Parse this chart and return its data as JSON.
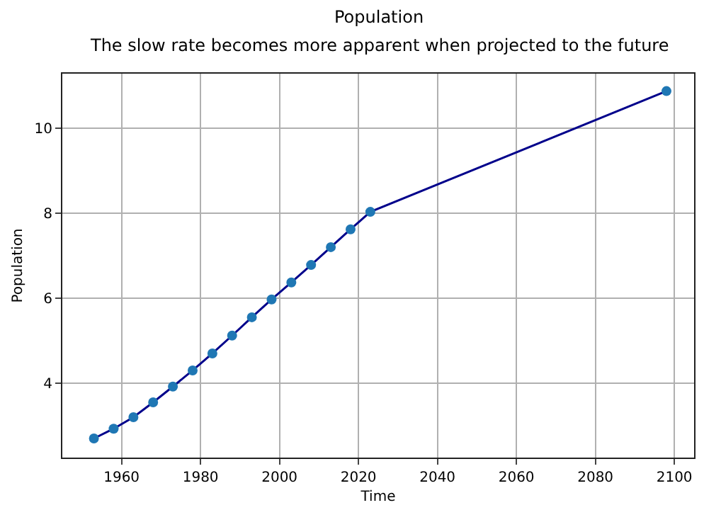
{
  "chart_data": {
    "type": "line",
    "title": "Population",
    "subtitle": "The slow rate becomes more apparent when projected to the future",
    "xlabel": "Time",
    "ylabel": "Population",
    "x": [
      1953,
      1958,
      1963,
      1968,
      1973,
      1978,
      1983,
      1988,
      1993,
      1998,
      2003,
      2008,
      2013,
      2018,
      2023,
      2098
    ],
    "series": [
      {
        "color": "#00008b",
        "colors": [
          "#1f77b4",
          "#1f77b4",
          "#1f77b4",
          "#1f77b4",
          "#1f77b4",
          "#1f77b4",
          "#1f77b4",
          "#1f77b4",
          "#1f77b4",
          "#1f77b4",
          "#1f77b4",
          "#1f77b4",
          "#1f77b4",
          "#1f77b4",
          "#1f77b4",
          "#1f77b4"
        ],
        "values": [
          2.7,
          2.93,
          3.2,
          3.55,
          3.92,
          4.3,
          4.7,
          5.12,
          5.55,
          5.97,
          6.37,
          6.78,
          7.2,
          7.62,
          8.03,
          10.87
        ]
      }
    ],
    "xlim": [
      1945,
      2105
    ],
    "xticks": [
      1960,
      1980,
      2000,
      2020,
      2040,
      2060,
      2080,
      2100
    ],
    "ylim": [
      2.25,
      11.28
    ],
    "yticks": [
      4,
      6,
      8,
      10
    ],
    "grid": true,
    "marker": "circle",
    "line_style": "solid"
  }
}
